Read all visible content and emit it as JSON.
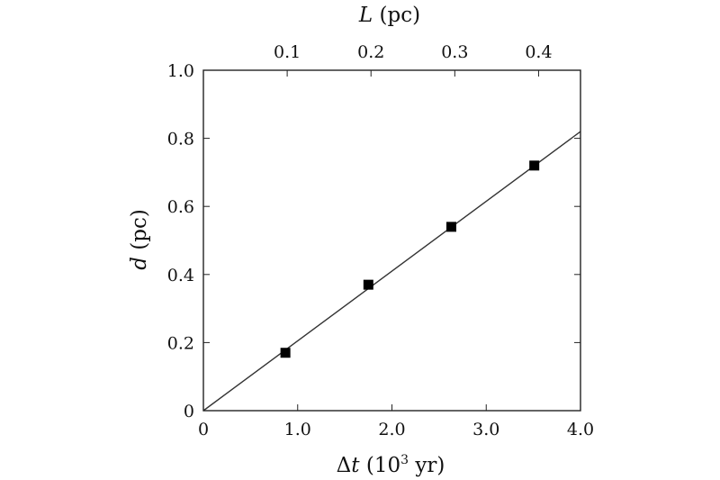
{
  "chart_data": {
    "type": "scatter",
    "xlabel": {
      "symbol": "Δ",
      "var": "t",
      "unit_open": " (10",
      "unit_sup": "3",
      "unit_close": " yr)"
    },
    "ylabel": {
      "var": "d",
      "unit": " (pc)"
    },
    "top_xlabel": {
      "var": "L",
      "unit": " (pc)"
    },
    "xlim": [
      0,
      4.0
    ],
    "ylim": [
      0,
      1.0
    ],
    "top_xlim": [
      0,
      0.45
    ],
    "x_ticks": [
      0,
      1.0,
      2.0,
      3.0,
      4.0
    ],
    "x_tick_labels": [
      "0",
      "1.0",
      "2.0",
      "3.0",
      "4.0"
    ],
    "y_ticks": [
      0,
      0.2,
      0.4,
      0.6,
      0.8,
      1.0
    ],
    "y_tick_labels": [
      "0",
      "0.2",
      "0.4",
      "0.6",
      "0.8",
      "1.0"
    ],
    "top_x_ticks": [
      0.1,
      0.2,
      0.3,
      0.4
    ],
    "top_x_tick_labels": [
      "0.1",
      "0.2",
      "0.3",
      "0.4"
    ],
    "points": [
      {
        "x": 0.87,
        "y": 0.17
      },
      {
        "x": 1.75,
        "y": 0.37
      },
      {
        "x": 2.63,
        "y": 0.54
      },
      {
        "x": 3.51,
        "y": 0.72
      }
    ],
    "fit_line": {
      "x": [
        0,
        4.0
      ],
      "y": [
        0,
        0.82
      ]
    },
    "grid": false,
    "colors": {
      "marker": "#000000",
      "line": "#333333",
      "axes": "#222222"
    }
  }
}
